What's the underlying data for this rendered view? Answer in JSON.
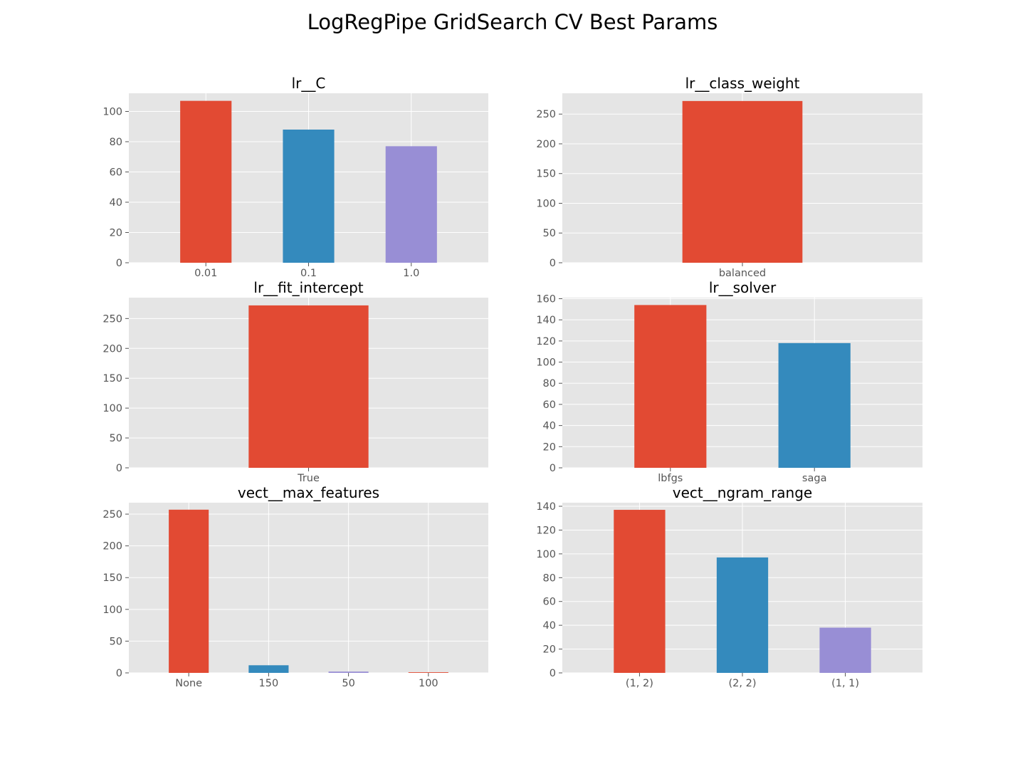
{
  "figure": {
    "title": "LogRegPipe GridSearch CV Best Params"
  },
  "colors": {
    "background": "#E5E5E5",
    "grid": "#FFFFFF",
    "tick_text": "#555555",
    "cycle": [
      "#E24A33",
      "#348ABD",
      "#988ED5"
    ]
  },
  "chart_data": [
    {
      "type": "bar",
      "title": "lr__C",
      "categories": [
        "0.01",
        "0.1",
        "1.0"
      ],
      "values": [
        107,
        88,
        77
      ],
      "ylim": [
        0,
        112
      ],
      "yticks": [
        0,
        20,
        40,
        60,
        80,
        100
      ],
      "grid": true
    },
    {
      "type": "bar",
      "title": "lr__class_weight",
      "categories": [
        "balanced"
      ],
      "values": [
        272
      ],
      "ylim": [
        0,
        285
      ],
      "yticks": [
        0,
        50,
        100,
        150,
        200,
        250
      ],
      "grid": true
    },
    {
      "type": "bar",
      "title": "lr__fit_intercept",
      "categories": [
        "True"
      ],
      "values": [
        272
      ],
      "ylim": [
        0,
        285
      ],
      "yticks": [
        0,
        50,
        100,
        150,
        200,
        250
      ],
      "grid": true
    },
    {
      "type": "bar",
      "title": "lr__solver",
      "categories": [
        "lbfgs",
        "saga"
      ],
      "values": [
        154,
        118
      ],
      "ylim": [
        0,
        161
      ],
      "yticks": [
        0,
        20,
        40,
        60,
        80,
        100,
        120,
        140,
        160
      ],
      "grid": true
    },
    {
      "type": "bar",
      "title": "vect__max_features",
      "categories": [
        "None",
        "150",
        "50",
        "100"
      ],
      "values": [
        257,
        12,
        2,
        1
      ],
      "ylim": [
        0,
        268
      ],
      "yticks": [
        0,
        50,
        100,
        150,
        200,
        250
      ],
      "grid": true
    },
    {
      "type": "bar",
      "title": "vect__ngram_range",
      "categories": [
        "(1, 2)",
        "(2, 2)",
        "(1, 1)"
      ],
      "values": [
        137,
        97,
        38
      ],
      "ylim": [
        0,
        143
      ],
      "yticks": [
        0,
        20,
        40,
        60,
        80,
        100,
        120,
        140
      ],
      "grid": true
    }
  ]
}
